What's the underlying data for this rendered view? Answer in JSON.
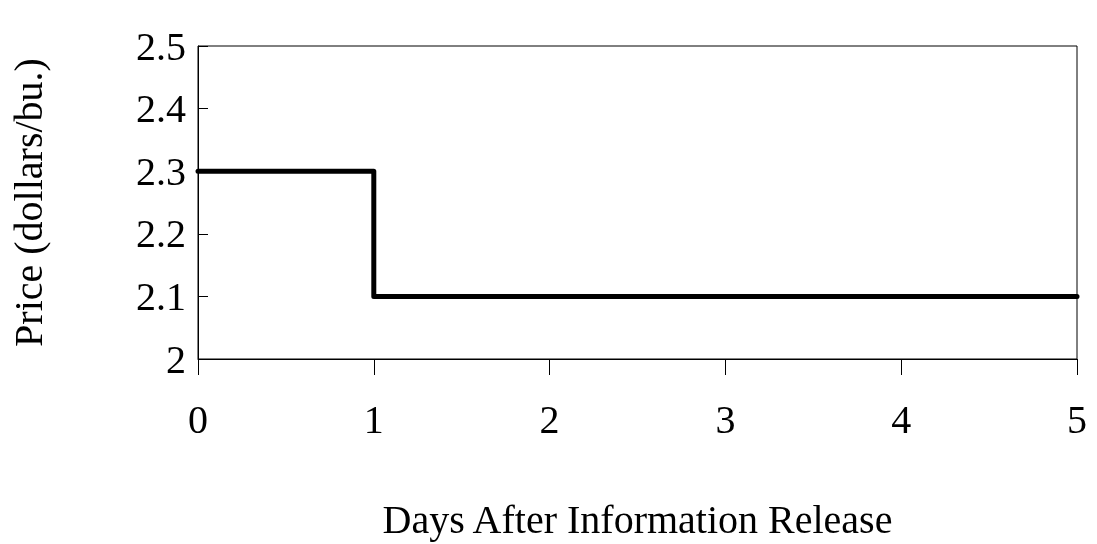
{
  "chart_data": {
    "type": "step",
    "xlabel": "Days After Information Release",
    "ylabel": "Price (dollars/bu.)",
    "x": [
      0,
      1,
      5
    ],
    "values": [
      2.3,
      2.1,
      2.1
    ],
    "color": "#000000",
    "xlim": [
      0,
      5
    ],
    "xticks": [
      0,
      1,
      2,
      3,
      4,
      5
    ],
    "ylim": [
      2,
      2.5
    ],
    "yticks": [
      2,
      2.1,
      2.2,
      2.3,
      2.4,
      2.5
    ],
    "marker": "none",
    "line_style": "solid"
  }
}
